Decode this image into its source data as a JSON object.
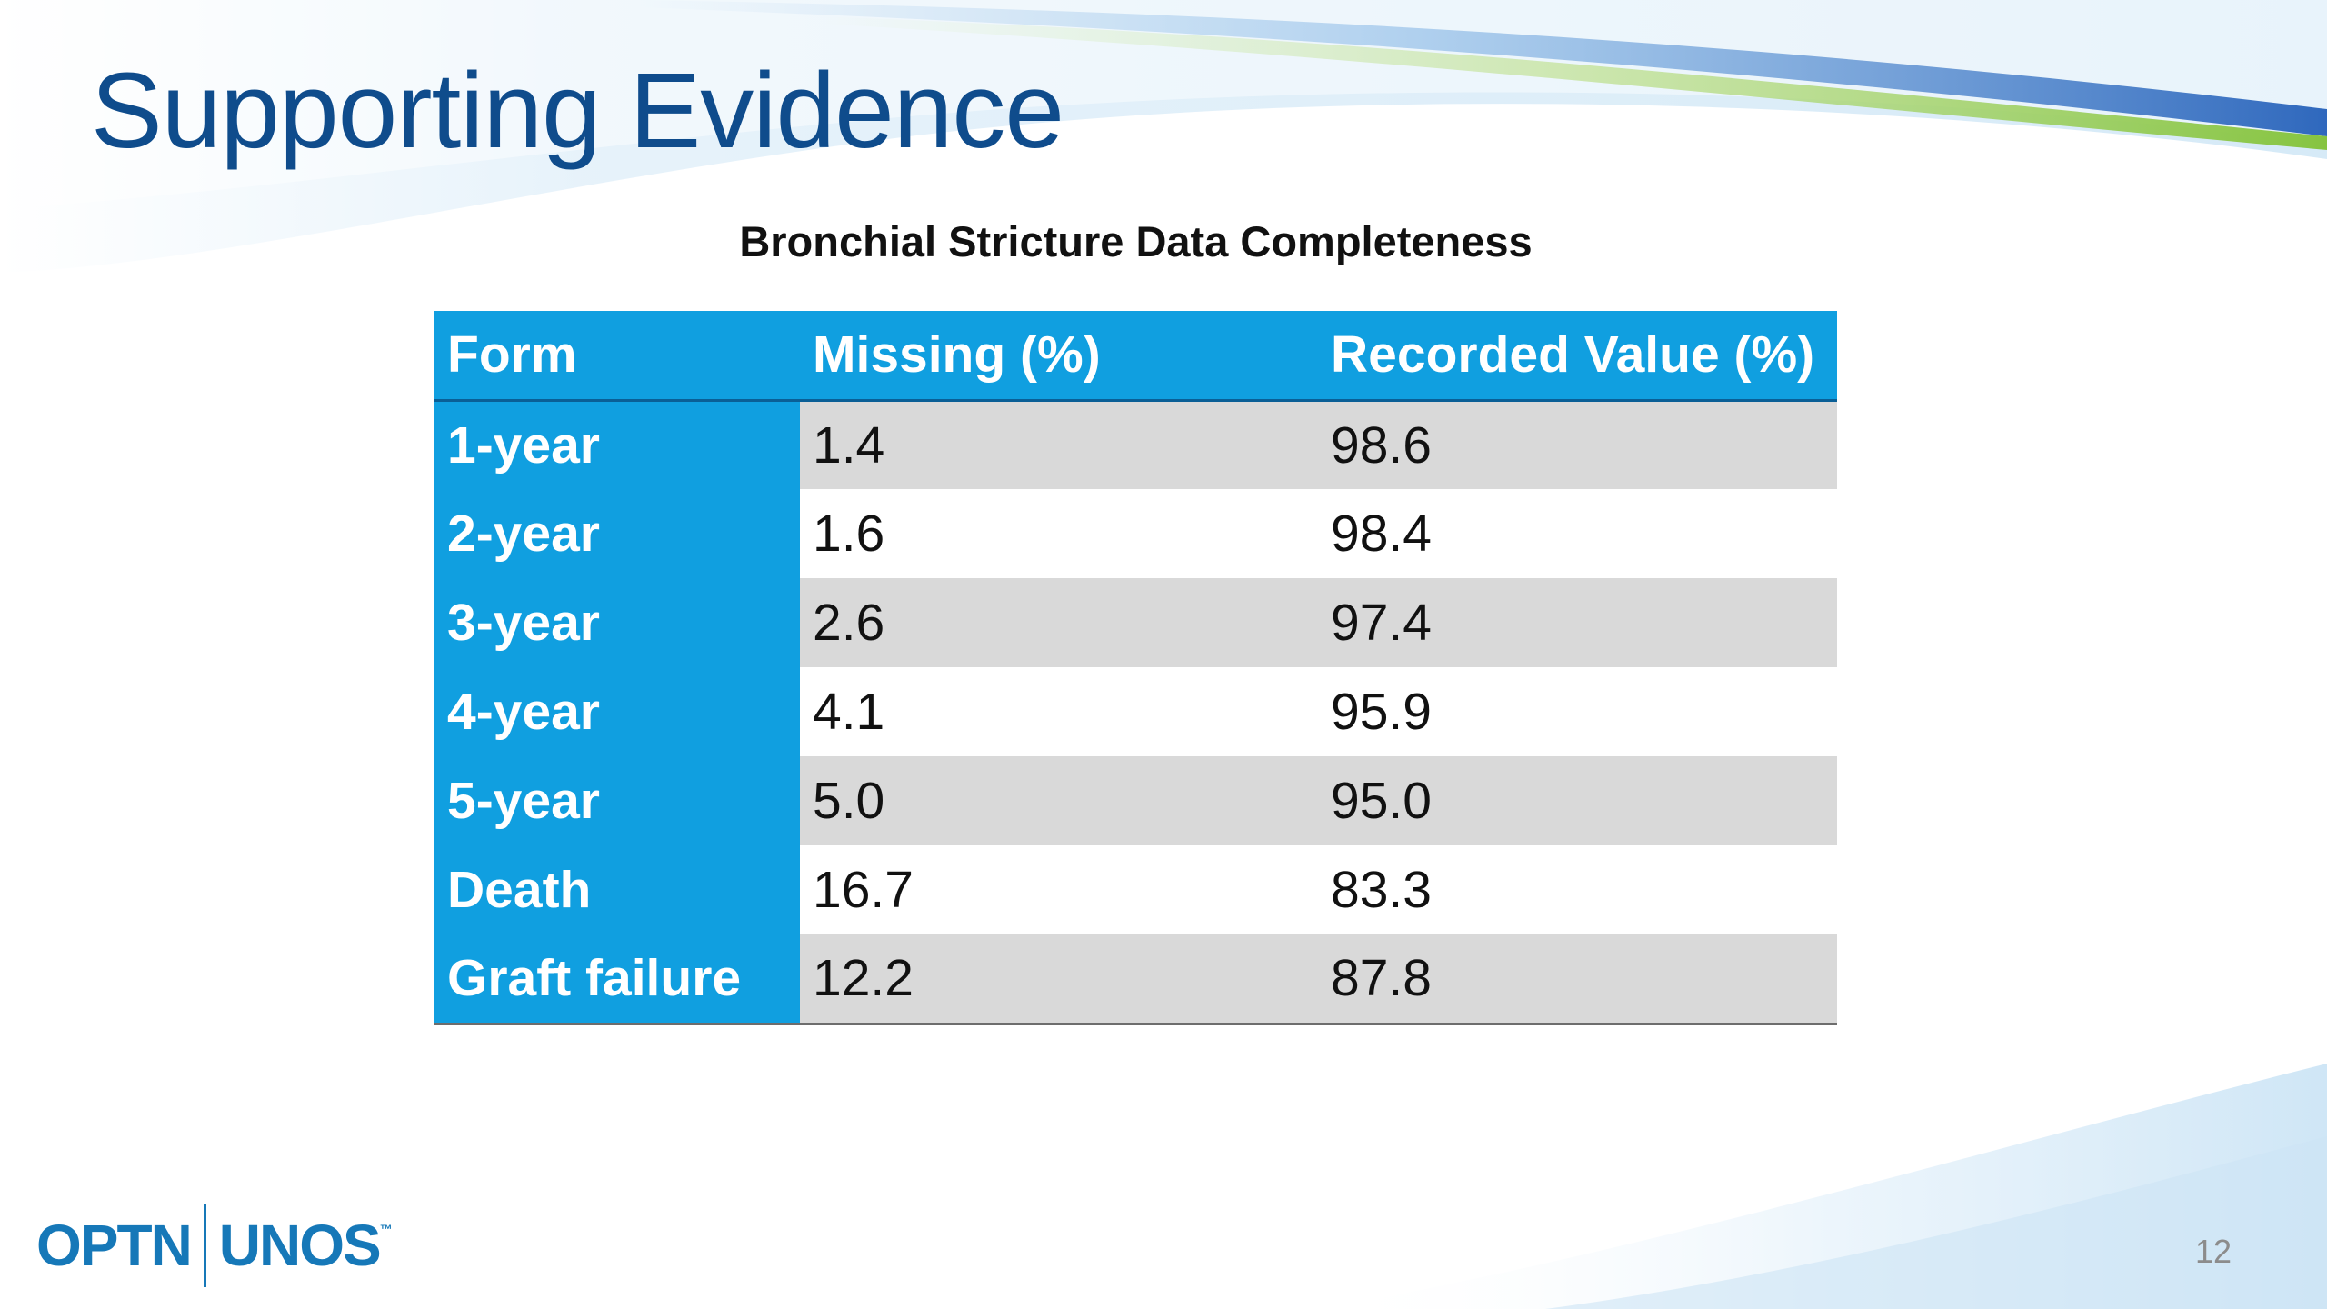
{
  "slide": {
    "title": "Supporting Evidence",
    "page_number": "12",
    "logo": {
      "left_text": "OPTN",
      "right_text": "UNOS",
      "mark": "™",
      "color": "#1678b8"
    },
    "colors": {
      "title": "#0f4c8c",
      "table_header": "#109fe0",
      "row_shade": "#d9d9d9",
      "swoosh_blue": "#3a75c4",
      "swoosh_green": "#8cc63f"
    }
  },
  "chart_data": {
    "type": "table",
    "title": "Bronchial Stricture Data Completeness",
    "columns": [
      "Form",
      "Missing (%)",
      "Recorded Value (%)"
    ],
    "rows": [
      {
        "form": "1-year",
        "missing": "1.4",
        "recorded": "98.6"
      },
      {
        "form": "2-year",
        "missing": "1.6",
        "recorded": "98.4"
      },
      {
        "form": "3-year",
        "missing": "2.6",
        "recorded": "97.4"
      },
      {
        "form": "4-year",
        "missing": "4.1",
        "recorded": "95.9"
      },
      {
        "form": "5-year",
        "missing": "5.0",
        "recorded": "95.0"
      },
      {
        "form": "Death",
        "missing": "16.7",
        "recorded": "83.3"
      },
      {
        "form": "Graft failure",
        "missing": "12.2",
        "recorded": "87.8"
      }
    ]
  }
}
